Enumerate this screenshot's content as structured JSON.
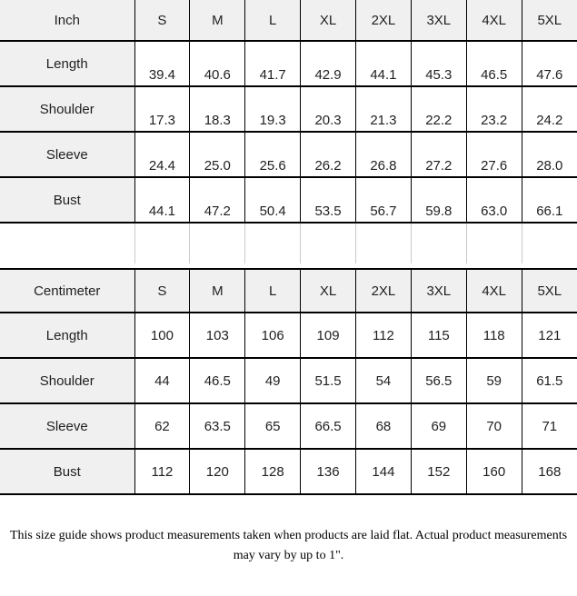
{
  "tables": [
    {
      "unit_label": "Inch",
      "sizes": [
        "S",
        "M",
        "L",
        "XL",
        "2XL",
        "3XL",
        "4XL",
        "5XL"
      ],
      "rows": [
        {
          "label": "Length",
          "values": [
            "39.4",
            "40.6",
            "41.7",
            "42.9",
            "44.1",
            "45.3",
            "46.5",
            "47.6"
          ]
        },
        {
          "label": "Shoulder",
          "values": [
            "17.3",
            "18.3",
            "19.3",
            "20.3",
            "21.3",
            "22.2",
            "23.2",
            "24.2"
          ]
        },
        {
          "label": "Sleeve",
          "values": [
            "24.4",
            "25.0",
            "25.6",
            "26.2",
            "26.8",
            "27.2",
            "27.6",
            "28.0"
          ]
        },
        {
          "label": "Bust",
          "values": [
            "44.1",
            "47.2",
            "50.4",
            "53.5",
            "56.7",
            "59.8",
            "63.0",
            "66.1"
          ]
        }
      ]
    },
    {
      "unit_label": "Centimeter",
      "sizes": [
        "S",
        "M",
        "L",
        "XL",
        "2XL",
        "3XL",
        "4XL",
        "5XL"
      ],
      "rows": [
        {
          "label": "Length",
          "values": [
            "100",
            "103",
            "106",
            "109",
            "112",
            "115",
            "118",
            "121"
          ]
        },
        {
          "label": "Shoulder",
          "values": [
            "44",
            "46.5",
            "49",
            "51.5",
            "54",
            "56.5",
            "59",
            "61.5"
          ]
        },
        {
          "label": "Sleeve",
          "values": [
            "62",
            "63.5",
            "65",
            "66.5",
            "68",
            "69",
            "70",
            "71"
          ]
        },
        {
          "label": "Bust",
          "values": [
            "112",
            "120",
            "128",
            "136",
            "144",
            "152",
            "160",
            "168"
          ]
        }
      ]
    }
  ],
  "footer": {
    "note": "This size guide shows product measurements taken when products are laid flat. Actual product measurements may vary by up to 1\"."
  },
  "colors": {
    "cell_fill": "#f0f0f0",
    "border": "#000000",
    "spacer_line": "#c9c9c9",
    "text": "#1f1f1f",
    "background": "#ffffff"
  }
}
